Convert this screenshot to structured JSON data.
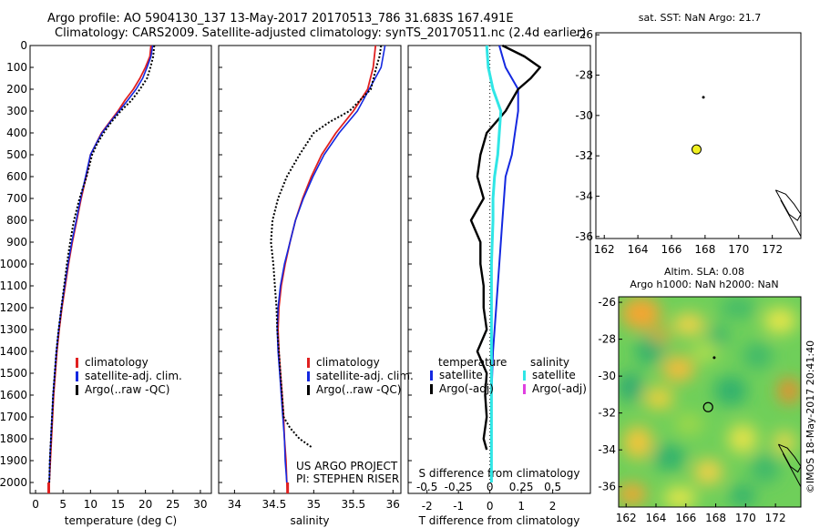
{
  "header": {
    "line1": "Argo profile: AO 5904130_137 13-May-2017 20170513_786 31.683S 167.491E",
    "line2": "Climatology: CARS2009. Satellite-adjusted climatology: synTS_20170511.nc (2.4d earlier)"
  },
  "side_text": "©IMOS 18-May-2017 20:41:40",
  "colors": {
    "clim": "#e02020",
    "sat": "#1428e0",
    "argo": "#000000",
    "s_sat": "#30e6e6",
    "s_argo": "#e040e0",
    "marker": "#f0f020"
  },
  "chart_data": [
    {
      "type": "line",
      "id": "temperature",
      "xlabel": "temperature (deg C)",
      "xlim": [
        -1,
        32
      ],
      "ylim": [
        2050,
        0
      ],
      "xticks": [
        0,
        5,
        10,
        15,
        20,
        25,
        30
      ],
      "yticks": [
        0,
        100,
        200,
        300,
        400,
        500,
        600,
        700,
        800,
        900,
        1000,
        1100,
        1200,
        1300,
        1400,
        1500,
        1600,
        1700,
        1800,
        1900,
        2000
      ],
      "legend": [
        "climatology",
        "satellite-adj. clim.",
        "Argo(..raw -QC)"
      ],
      "series": [
        {
          "key": "clim",
          "points": [
            [
              21.0,
              0
            ],
            [
              20.8,
              50
            ],
            [
              20.0,
              100
            ],
            [
              19.0,
              150
            ],
            [
              17.8,
              200
            ],
            [
              16.3,
              250
            ],
            [
              15.0,
              300
            ],
            [
              13.5,
              350
            ],
            [
              12.0,
              400
            ],
            [
              11.0,
              450
            ],
            [
              10.0,
              500
            ],
            [
              9.2,
              600
            ],
            [
              8.3,
              700
            ],
            [
              7.5,
              800
            ],
            [
              6.7,
              900
            ],
            [
              6.0,
              1000
            ],
            [
              5.4,
              1100
            ],
            [
              4.8,
              1200
            ],
            [
              4.3,
              1300
            ],
            [
              3.9,
              1400
            ],
            [
              3.6,
              1500
            ],
            [
              3.3,
              1600
            ],
            [
              3.1,
              1700
            ],
            [
              2.9,
              1800
            ],
            [
              2.7,
              1900
            ],
            [
              2.5,
              2000
            ],
            [
              2.4,
              2050
            ]
          ]
        },
        {
          "key": "sat",
          "points": [
            [
              21.3,
              0
            ],
            [
              21.0,
              50
            ],
            [
              20.3,
              100
            ],
            [
              19.5,
              150
            ],
            [
              18.3,
              200
            ],
            [
              16.8,
              250
            ],
            [
              15.2,
              300
            ],
            [
              13.6,
              350
            ],
            [
              12.1,
              400
            ],
            [
              11.0,
              450
            ],
            [
              10.0,
              500
            ],
            [
              9.1,
              600
            ],
            [
              8.2,
              700
            ],
            [
              7.4,
              800
            ],
            [
              6.6,
              900
            ],
            [
              5.9,
              1000
            ],
            [
              5.3,
              1100
            ],
            [
              4.7,
              1200
            ],
            [
              4.2,
              1300
            ],
            [
              3.8,
              1400
            ],
            [
              3.5,
              1500
            ],
            [
              3.2,
              1600
            ],
            [
              3.0,
              1700
            ],
            [
              2.8,
              1800
            ],
            [
              2.6,
              1900
            ],
            [
              2.5,
              2000
            ]
          ]
        },
        {
          "key": "argo",
          "points": [
            [
              21.6,
              0
            ],
            [
              21.4,
              50
            ],
            [
              21.1,
              80
            ],
            [
              20.9,
              100
            ],
            [
              20.3,
              150
            ],
            [
              19.0,
              200
            ],
            [
              17.5,
              250
            ],
            [
              15.5,
              300
            ],
            [
              13.8,
              350
            ],
            [
              12.4,
              400
            ],
            [
              11.2,
              450
            ],
            [
              10.3,
              500
            ],
            [
              9.3,
              600
            ],
            [
              8.0,
              700
            ],
            [
              7.0,
              800
            ],
            [
              6.3,
              900
            ],
            [
              5.7,
              1000
            ],
            [
              5.2,
              1100
            ],
            [
              4.7,
              1200
            ],
            [
              4.2,
              1300
            ],
            [
              3.8,
              1400
            ],
            [
              3.5,
              1500
            ],
            [
              3.2,
              1600
            ],
            [
              3.0,
              1700
            ],
            [
              2.8,
              1800
            ],
            [
              2.6,
              1900
            ],
            [
              2.5,
              2000
            ]
          ]
        }
      ]
    },
    {
      "type": "line",
      "id": "salinity",
      "xlabel": "salinity",
      "xlim": [
        33.8,
        36.1
      ],
      "ylim": [
        2050,
        0
      ],
      "xticks": [
        34,
        34.5,
        35,
        35.5,
        36
      ],
      "legend": [
        "climatology",
        "satellite-adj. clim.",
        "Argo(..raw -QC)"
      ],
      "annotations": [
        "US ARGO PROJECT",
        "PI: STEPHEN RISER"
      ],
      "series": [
        {
          "key": "clim",
          "points": [
            [
              35.78,
              0
            ],
            [
              35.75,
              100
            ],
            [
              35.68,
              200
            ],
            [
              35.5,
              300
            ],
            [
              35.28,
              400
            ],
            [
              35.1,
              500
            ],
            [
              34.97,
              600
            ],
            [
              34.86,
              700
            ],
            [
              34.77,
              800
            ],
            [
              34.7,
              900
            ],
            [
              34.64,
              1000
            ],
            [
              34.59,
              1100
            ],
            [
              34.56,
              1200
            ],
            [
              34.55,
              1300
            ],
            [
              34.56,
              1400
            ],
            [
              34.58,
              1500
            ],
            [
              34.6,
              1600
            ],
            [
              34.62,
              1700
            ],
            [
              34.63,
              1800
            ],
            [
              34.65,
              1900
            ],
            [
              34.66,
              2000
            ],
            [
              34.67,
              2050
            ]
          ]
        },
        {
          "key": "sat",
          "points": [
            [
              35.9,
              0
            ],
            [
              35.85,
              100
            ],
            [
              35.7,
              200
            ],
            [
              35.55,
              300
            ],
            [
              35.32,
              400
            ],
            [
              35.13,
              500
            ],
            [
              34.99,
              600
            ],
            [
              34.87,
              700
            ],
            [
              34.77,
              800
            ],
            [
              34.7,
              900
            ],
            [
              34.63,
              1000
            ],
            [
              34.58,
              1100
            ],
            [
              34.55,
              1200
            ],
            [
              34.54,
              1300
            ],
            [
              34.55,
              1400
            ],
            [
              34.57,
              1500
            ],
            [
              34.59,
              1600
            ],
            [
              34.61,
              1700
            ],
            [
              34.63,
              1800
            ],
            [
              34.64,
              1900
            ],
            [
              34.66,
              2000
            ]
          ]
        },
        {
          "key": "argo",
          "points": [
            [
              35.85,
              0
            ],
            [
              35.83,
              50
            ],
            [
              35.79,
              100
            ],
            [
              35.72,
              200
            ],
            [
              35.45,
              300
            ],
            [
              35.2,
              350
            ],
            [
              35.0,
              400
            ],
            [
              34.82,
              500
            ],
            [
              34.66,
              600
            ],
            [
              34.55,
              700
            ],
            [
              34.48,
              800
            ],
            [
              34.46,
              900
            ],
            [
              34.49,
              1000
            ],
            [
              34.51,
              1100
            ],
            [
              34.53,
              1200
            ],
            [
              34.54,
              1300
            ],
            [
              34.56,
              1400
            ],
            [
              34.58,
              1500
            ],
            [
              34.6,
              1600
            ],
            [
              34.62,
              1700
            ],
            [
              34.7,
              1750
            ],
            [
              34.82,
              1800
            ],
            [
              34.98,
              1840
            ]
          ]
        }
      ]
    },
    {
      "type": "line",
      "id": "difference",
      "xlabel_top": "S difference from climatology",
      "xlabel": "T difference from climatology",
      "xlim": [
        -2.6,
        3.2
      ],
      "ylim": [
        2050,
        0
      ],
      "xticks": [
        -2,
        -1,
        0,
        1,
        2
      ],
      "xticklabels_top": [
        "-0.5",
        "-0.25",
        "0",
        "0.25",
        "0.5"
      ],
      "legend": {
        "temperature_header": "temperature",
        "salinity_header": "salinity",
        "t_items": [
          "satellite",
          "Argo(-adj)"
        ],
        "s_items": [
          "satellite",
          "Argo(-adj)"
        ]
      },
      "series": [
        {
          "key": "sat",
          "points": [
            [
              0.3,
              0
            ],
            [
              0.4,
              50
            ],
            [
              0.5,
              100
            ],
            [
              0.9,
              200
            ],
            [
              0.9,
              300
            ],
            [
              0.8,
              400
            ],
            [
              0.7,
              500
            ],
            [
              0.5,
              600
            ],
            [
              0.4,
              800
            ],
            [
              0.3,
              1000
            ],
            [
              0.2,
              1200
            ],
            [
              0.1,
              1400
            ],
            [
              0.05,
              1600
            ],
            [
              0.05,
              2000
            ]
          ]
        },
        {
          "key": "argo",
          "points": [
            [
              0.4,
              0
            ],
            [
              1.1,
              50
            ],
            [
              1.6,
              100
            ],
            [
              1.3,
              150
            ],
            [
              0.9,
              200
            ],
            [
              0.5,
              300
            ],
            [
              -0.1,
              400
            ],
            [
              -0.3,
              500
            ],
            [
              -0.4,
              600
            ],
            [
              -0.2,
              700
            ],
            [
              -0.6,
              800
            ],
            [
              -0.3,
              900
            ],
            [
              -0.3,
              1000
            ],
            [
              -0.2,
              1100
            ],
            [
              -0.2,
              1200
            ],
            [
              -0.1,
              1300
            ],
            [
              -0.4,
              1400
            ],
            [
              -0.1,
              1500
            ],
            [
              -0.15,
              1600
            ],
            [
              -0.1,
              1700
            ],
            [
              -0.2,
              1800
            ],
            [
              -0.1,
              1850
            ]
          ]
        },
        {
          "key": "s_sat",
          "points": [
            [
              -0.1,
              0
            ],
            [
              -0.05,
              100
            ],
            [
              0.1,
              200
            ],
            [
              0.35,
              300
            ],
            [
              0.3,
              400
            ],
            [
              0.25,
              500
            ],
            [
              0.15,
              600
            ],
            [
              0.1,
              700
            ],
            [
              0.1,
              800
            ],
            [
              0.05,
              1000
            ],
            [
              0.05,
              1500
            ],
            [
              0.05,
              2000
            ]
          ]
        }
      ]
    },
    {
      "type": "map",
      "id": "sst-map",
      "title": "sat. SST: NaN Argo: 21.7",
      "xlim": [
        161.5,
        173.7
      ],
      "ylim": [
        -36.1,
        -25.9
      ],
      "xticks": [
        162,
        164,
        166,
        168,
        170,
        172
      ],
      "yticks": [
        -26,
        -28,
        -30,
        -32,
        -34,
        -36
      ],
      "float_position": [
        167.491,
        -31.683
      ],
      "aux_point": [
        167.9,
        -29.1
      ]
    },
    {
      "type": "heatmap",
      "id": "sla-map",
      "title_lines": [
        "Altim. SLA: 0.08",
        "Argo h1000: NaN h2000: NaN"
      ],
      "xlim": [
        161.5,
        173.7
      ],
      "ylim": [
        -37.1,
        -25.7
      ],
      "xticks": [
        162,
        164,
        166,
        168,
        170,
        172
      ],
      "yticks": [
        -26,
        -28,
        -30,
        -32,
        -34,
        -36
      ],
      "float_position": [
        167.491,
        -31.683
      ],
      "aux_point": [
        167.9,
        -29.0
      ]
    }
  ]
}
